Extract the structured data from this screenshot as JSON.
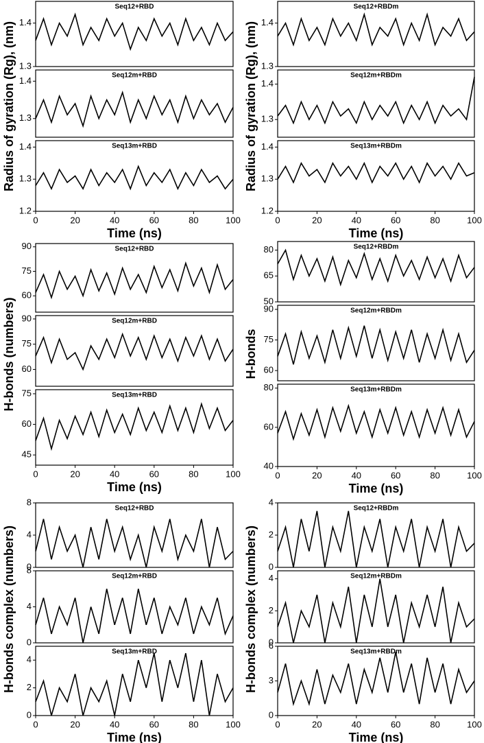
{
  "chart_data": [
    {
      "type": "line",
      "ylabel": "Radius of gyration (Rg), (nm)",
      "xlabel": "Time (ns)",
      "xlim": [
        0,
        100
      ],
      "xticks": [
        0,
        20,
        40,
        60,
        80,
        100
      ],
      "color": "#000000",
      "x": [
        0,
        4,
        8,
        12,
        16,
        20,
        24,
        28,
        32,
        36,
        40,
        44,
        48,
        52,
        56,
        60,
        64,
        68,
        72,
        76,
        80,
        84,
        88,
        92,
        96,
        100
      ],
      "panels": [
        {
          "title": "Seq12+RBD",
          "ylim": [
            1.3,
            1.45
          ],
          "yticks": [
            1.3,
            1.4
          ],
          "values": [
            1.36,
            1.41,
            1.35,
            1.4,
            1.37,
            1.42,
            1.35,
            1.39,
            1.36,
            1.41,
            1.37,
            1.4,
            1.34,
            1.39,
            1.36,
            1.41,
            1.37,
            1.4,
            1.35,
            1.41,
            1.36,
            1.39,
            1.35,
            1.4,
            1.36,
            1.38
          ]
        },
        {
          "title": "Seq12m+RBD",
          "ylim": [
            1.25,
            1.43
          ],
          "yticks": [
            1.3,
            1.4
          ],
          "values": [
            1.3,
            1.35,
            1.29,
            1.36,
            1.31,
            1.34,
            1.28,
            1.36,
            1.3,
            1.35,
            1.31,
            1.37,
            1.29,
            1.35,
            1.3,
            1.36,
            1.31,
            1.35,
            1.29,
            1.36,
            1.3,
            1.35,
            1.31,
            1.34,
            1.29,
            1.33
          ]
        },
        {
          "title": "Seq13m+RBD",
          "ylim": [
            1.2,
            1.42
          ],
          "yticks": [
            1.2,
            1.3,
            1.4
          ],
          "values": [
            1.28,
            1.32,
            1.27,
            1.33,
            1.29,
            1.31,
            1.27,
            1.33,
            1.28,
            1.32,
            1.29,
            1.33,
            1.27,
            1.34,
            1.28,
            1.32,
            1.29,
            1.33,
            1.27,
            1.32,
            1.28,
            1.33,
            1.29,
            1.31,
            1.27,
            1.3
          ]
        }
      ]
    },
    {
      "type": "line",
      "ylabel": "Radius of gyration (Rg), (nm)",
      "xlabel": "Time (ns)",
      "xlim": [
        0,
        100
      ],
      "xticks": [
        0,
        20,
        40,
        60,
        80,
        100
      ],
      "color": "#000000",
      "x": [
        0,
        4,
        8,
        12,
        16,
        20,
        24,
        28,
        32,
        36,
        40,
        44,
        48,
        52,
        56,
        60,
        64,
        68,
        72,
        76,
        80,
        84,
        88,
        92,
        96,
        100
      ],
      "panels": [
        {
          "title": "Seq12+RBDm",
          "ylim": [
            1.3,
            1.45
          ],
          "yticks": [
            1.3,
            1.4
          ],
          "values": [
            1.37,
            1.4,
            1.35,
            1.41,
            1.36,
            1.39,
            1.35,
            1.41,
            1.37,
            1.4,
            1.36,
            1.42,
            1.35,
            1.39,
            1.37,
            1.41,
            1.35,
            1.4,
            1.36,
            1.42,
            1.35,
            1.39,
            1.37,
            1.41,
            1.36,
            1.38
          ]
        },
        {
          "title": "Seq12m+RBDm",
          "ylim": [
            1.25,
            1.44
          ],
          "yticks": [
            1.3,
            1.4
          ],
          "values": [
            1.31,
            1.34,
            1.29,
            1.35,
            1.3,
            1.34,
            1.29,
            1.35,
            1.31,
            1.33,
            1.29,
            1.35,
            1.3,
            1.34,
            1.31,
            1.35,
            1.29,
            1.34,
            1.3,
            1.35,
            1.29,
            1.34,
            1.31,
            1.33,
            1.3,
            1.42
          ]
        },
        {
          "title": "Seq13m+RBDm",
          "ylim": [
            1.2,
            1.42
          ],
          "yticks": [
            1.2,
            1.3,
            1.4
          ],
          "values": [
            1.3,
            1.34,
            1.29,
            1.35,
            1.31,
            1.33,
            1.29,
            1.35,
            1.31,
            1.34,
            1.3,
            1.35,
            1.29,
            1.34,
            1.31,
            1.35,
            1.3,
            1.34,
            1.29,
            1.35,
            1.31,
            1.34,
            1.3,
            1.35,
            1.31,
            1.32
          ]
        }
      ]
    },
    {
      "type": "line",
      "ylabel": "H-bonds (numbers)",
      "xlabel": "Time (ns)",
      "xlim": [
        0,
        100
      ],
      "xticks": [
        0,
        20,
        40,
        60,
        80,
        100
      ],
      "color": "#000000",
      "x": [
        0,
        4,
        8,
        12,
        16,
        20,
        24,
        28,
        32,
        36,
        40,
        44,
        48,
        52,
        56,
        60,
        64,
        68,
        72,
        76,
        80,
        84,
        88,
        92,
        96,
        100
      ],
      "panels": [
        {
          "title": "Seq12+RBD",
          "ylim": [
            50,
            92
          ],
          "yticks": [
            60,
            75,
            90
          ],
          "values": [
            62,
            73,
            59,
            75,
            64,
            72,
            60,
            76,
            63,
            74,
            61,
            77,
            64,
            73,
            62,
            78,
            65,
            76,
            63,
            80,
            66,
            77,
            62,
            79,
            64,
            70
          ]
        },
        {
          "title": "Seq12m+RBD",
          "ylim": [
            50,
            92
          ],
          "yticks": [
            60,
            75,
            90
          ],
          "values": [
            68,
            79,
            64,
            78,
            66,
            70,
            60,
            74,
            66,
            78,
            67,
            81,
            68,
            79,
            66,
            80,
            67,
            78,
            65,
            79,
            68,
            80,
            66,
            78,
            65,
            72
          ]
        },
        {
          "title": "Seq13m+RBD",
          "ylim": [
            40,
            77
          ],
          "yticks": [
            45,
            60,
            75
          ],
          "values": [
            52,
            63,
            48,
            62,
            53,
            64,
            55,
            66,
            54,
            67,
            56,
            65,
            55,
            68,
            57,
            66,
            56,
            69,
            57,
            68,
            56,
            70,
            58,
            68,
            57,
            62
          ]
        }
      ]
    },
    {
      "type": "line",
      "ylabel": "H-bonds",
      "xlabel": "Time (ns)",
      "xlim": [
        0,
        100
      ],
      "xticks": [
        0,
        20,
        40,
        60,
        80,
        100
      ],
      "color": "#000000",
      "x": [
        0,
        4,
        8,
        12,
        16,
        20,
        24,
        28,
        32,
        36,
        40,
        44,
        48,
        52,
        56,
        60,
        64,
        68,
        72,
        76,
        80,
        84,
        88,
        92,
        96,
        100
      ],
      "panels": [
        {
          "title": "Seq12+RBDm",
          "ylim": [
            50,
            85
          ],
          "yticks": [
            50,
            65,
            80
          ],
          "values": [
            72,
            80,
            63,
            77,
            65,
            75,
            62,
            76,
            60,
            74,
            64,
            78,
            63,
            75,
            62,
            77,
            65,
            74,
            63,
            76,
            64,
            75,
            62,
            77,
            64,
            70
          ]
        },
        {
          "title": "Seq12m+RBDm",
          "ylim": [
            55,
            92
          ],
          "yticks": [
            60,
            75,
            90
          ],
          "values": [
            67,
            78,
            63,
            79,
            66,
            77,
            64,
            80,
            66,
            81,
            67,
            82,
            66,
            80,
            65,
            79,
            66,
            80,
            64,
            78,
            66,
            80,
            65,
            78,
            64,
            70
          ]
        },
        {
          "title": "Seq13m+RBDm",
          "ylim": [
            40,
            82
          ],
          "yticks": [
            40,
            60,
            80
          ],
          "values": [
            57,
            68,
            54,
            67,
            56,
            69,
            55,
            70,
            58,
            71,
            57,
            68,
            55,
            69,
            57,
            70,
            56,
            68,
            55,
            69,
            57,
            70,
            56,
            69,
            55,
            63
          ]
        }
      ]
    },
    {
      "type": "line",
      "ylabel": "H-bonds complex (numbers)",
      "xlabel": "Time (ns)",
      "xlim": [
        0,
        100
      ],
      "xticks": [
        0,
        20,
        40,
        60,
        80,
        100
      ],
      "color": "#000000",
      "x": [
        0,
        4,
        8,
        12,
        16,
        20,
        24,
        28,
        32,
        36,
        40,
        44,
        48,
        52,
        56,
        60,
        64,
        68,
        72,
        76,
        80,
        84,
        88,
        92,
        96,
        100
      ],
      "panels": [
        {
          "title": "Seq12+RBD",
          "ylim": [
            0,
            8
          ],
          "yticks": [
            0,
            4,
            8
          ],
          "values": [
            2,
            6,
            1,
            5,
            2,
            4,
            0,
            5,
            1,
            6,
            2,
            5,
            1,
            4,
            0,
            5,
            2,
            6,
            1,
            4,
            2,
            6,
            0,
            5,
            1,
            2
          ]
        },
        {
          "title": "Seq12m+RBD",
          "ylim": [
            0,
            8
          ],
          "yticks": [
            0,
            4,
            8
          ],
          "values": [
            2,
            5,
            1,
            4,
            2,
            5,
            0,
            4,
            1,
            6,
            2,
            5,
            1,
            6,
            2,
            5,
            1,
            4,
            2,
            5,
            1,
            4,
            2,
            5,
            1,
            3
          ]
        },
        {
          "title": "Seq13m+RBD",
          "ylim": [
            0,
            5
          ],
          "yticks": [
            0,
            2,
            4
          ],
          "values": [
            1,
            2.5,
            0,
            2,
            1,
            3,
            0,
            2,
            1,
            2.5,
            0,
            3,
            1,
            4,
            2,
            4.5,
            1,
            4,
            2,
            4.5,
            1,
            4,
            0,
            3,
            1,
            2
          ]
        }
      ]
    },
    {
      "type": "line",
      "ylabel": "H-bonds complex (numbers)",
      "xlabel": "Time (ns)",
      "xlim": [
        0,
        100
      ],
      "xticks": [
        0,
        20,
        40,
        60,
        80,
        100
      ],
      "color": "#000000",
      "x": [
        0,
        4,
        8,
        12,
        16,
        20,
        24,
        28,
        32,
        36,
        40,
        44,
        48,
        52,
        56,
        60,
        64,
        68,
        72,
        76,
        80,
        84,
        88,
        92,
        96,
        100
      ],
      "panels": [
        {
          "title": "Seq12+RBDm",
          "ylim": [
            0,
            4
          ],
          "yticks": [
            0,
            2,
            4
          ],
          "values": [
            1,
            2.5,
            0,
            3,
            1,
            3.5,
            0,
            2.5,
            1,
            3.5,
            0,
            2.5,
            1,
            3,
            0,
            2.5,
            1,
            3,
            0,
            2.5,
            1,
            3,
            0,
            2.5,
            1,
            1.5
          ]
        },
        {
          "title": "Seq12m+RBDm",
          "ylim": [
            0,
            4.5
          ],
          "yticks": [
            0,
            2,
            4
          ],
          "values": [
            1,
            2.5,
            0,
            2,
            1,
            3,
            0,
            2.5,
            1,
            3.5,
            0,
            3,
            1,
            4,
            1,
            3,
            0,
            2.5,
            1,
            3,
            1,
            3.5,
            0,
            2.5,
            1,
            1.5
          ]
        },
        {
          "title": "Seq13m+RBDm",
          "ylim": [
            0,
            6
          ],
          "yticks": [
            0,
            3,
            6
          ],
          "values": [
            2,
            4.5,
            1,
            3,
            1,
            4,
            1,
            3.5,
            2,
            4.5,
            1,
            4,
            2,
            5,
            2,
            5.5,
            2,
            4.5,
            1,
            5,
            2,
            4.5,
            1,
            4,
            2,
            3
          ]
        }
      ]
    }
  ]
}
